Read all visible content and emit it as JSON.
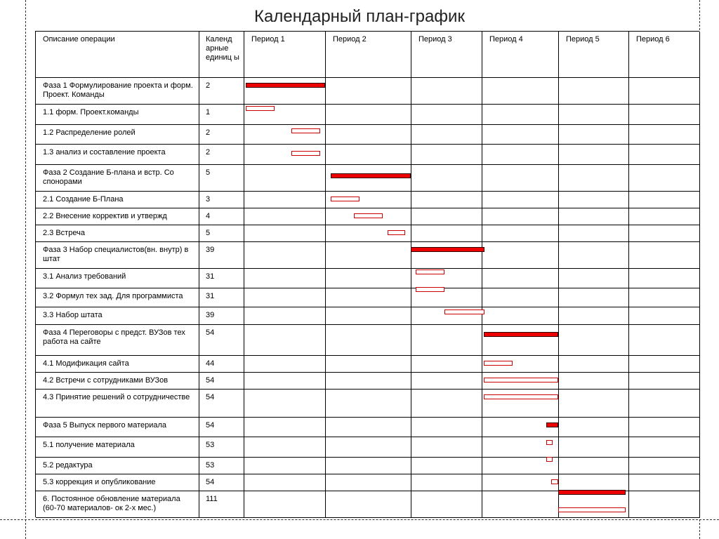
{
  "title": "Календарный план-график",
  "table": {
    "header": [
      "Описание операции",
      "Календ арные единиц ы",
      "Период 1",
      "Период 2",
      "Период 3",
      "Период 4",
      "Период 5",
      "Период 6"
    ],
    "rows": [
      [
        "Фаза 1 Формулирование проекта и форм. Проект. Команды",
        2
      ],
      [
        "1.1 форм. Проект.команды",
        1
      ],
      [
        "1.2 Распределение ролей",
        2
      ],
      [
        "1.3 анализ и составление проекта",
        2
      ],
      [
        "Фаза 2 Создание Б-плана и встр. Со спонорами",
        5
      ],
      [
        "2.1 Создание Б-Плана",
        3
      ],
      [
        "2.2 Внесение корректив и утвержд",
        4
      ],
      [
        "2.3 Встреча",
        5
      ],
      [
        "Фаза 3 Набор специалистов(вн. внутр) в штат",
        39
      ],
      [
        "3.1 Анализ требований",
        31
      ],
      [
        "3.2 Формул тех зад. Для программиста",
        31
      ],
      [
        "3.3 Набор штата",
        39
      ],
      [
        "Фаза 4 Переговоры с предст. ВУЗов тех работа на сайте",
        54
      ],
      [
        "4.1 Модификация сайта",
        44
      ],
      [
        "4.2 Встречи с сотрудниками ВУЗов",
        54
      ],
      [
        "4.3 Принятие решений о сотрудничестве",
        54
      ],
      [
        "Фаза 5 Выпуск первого материала",
        54
      ],
      [
        "5.1 получение материала",
        53
      ],
      [
        "5.2 редактура",
        53
      ],
      [
        "5.3 коррекция и опубликование",
        54
      ],
      [
        "6. Постоянное обновление материала (60-70 материалов- ок 2-х мес.)",
        111
      ]
    ]
  }
}
